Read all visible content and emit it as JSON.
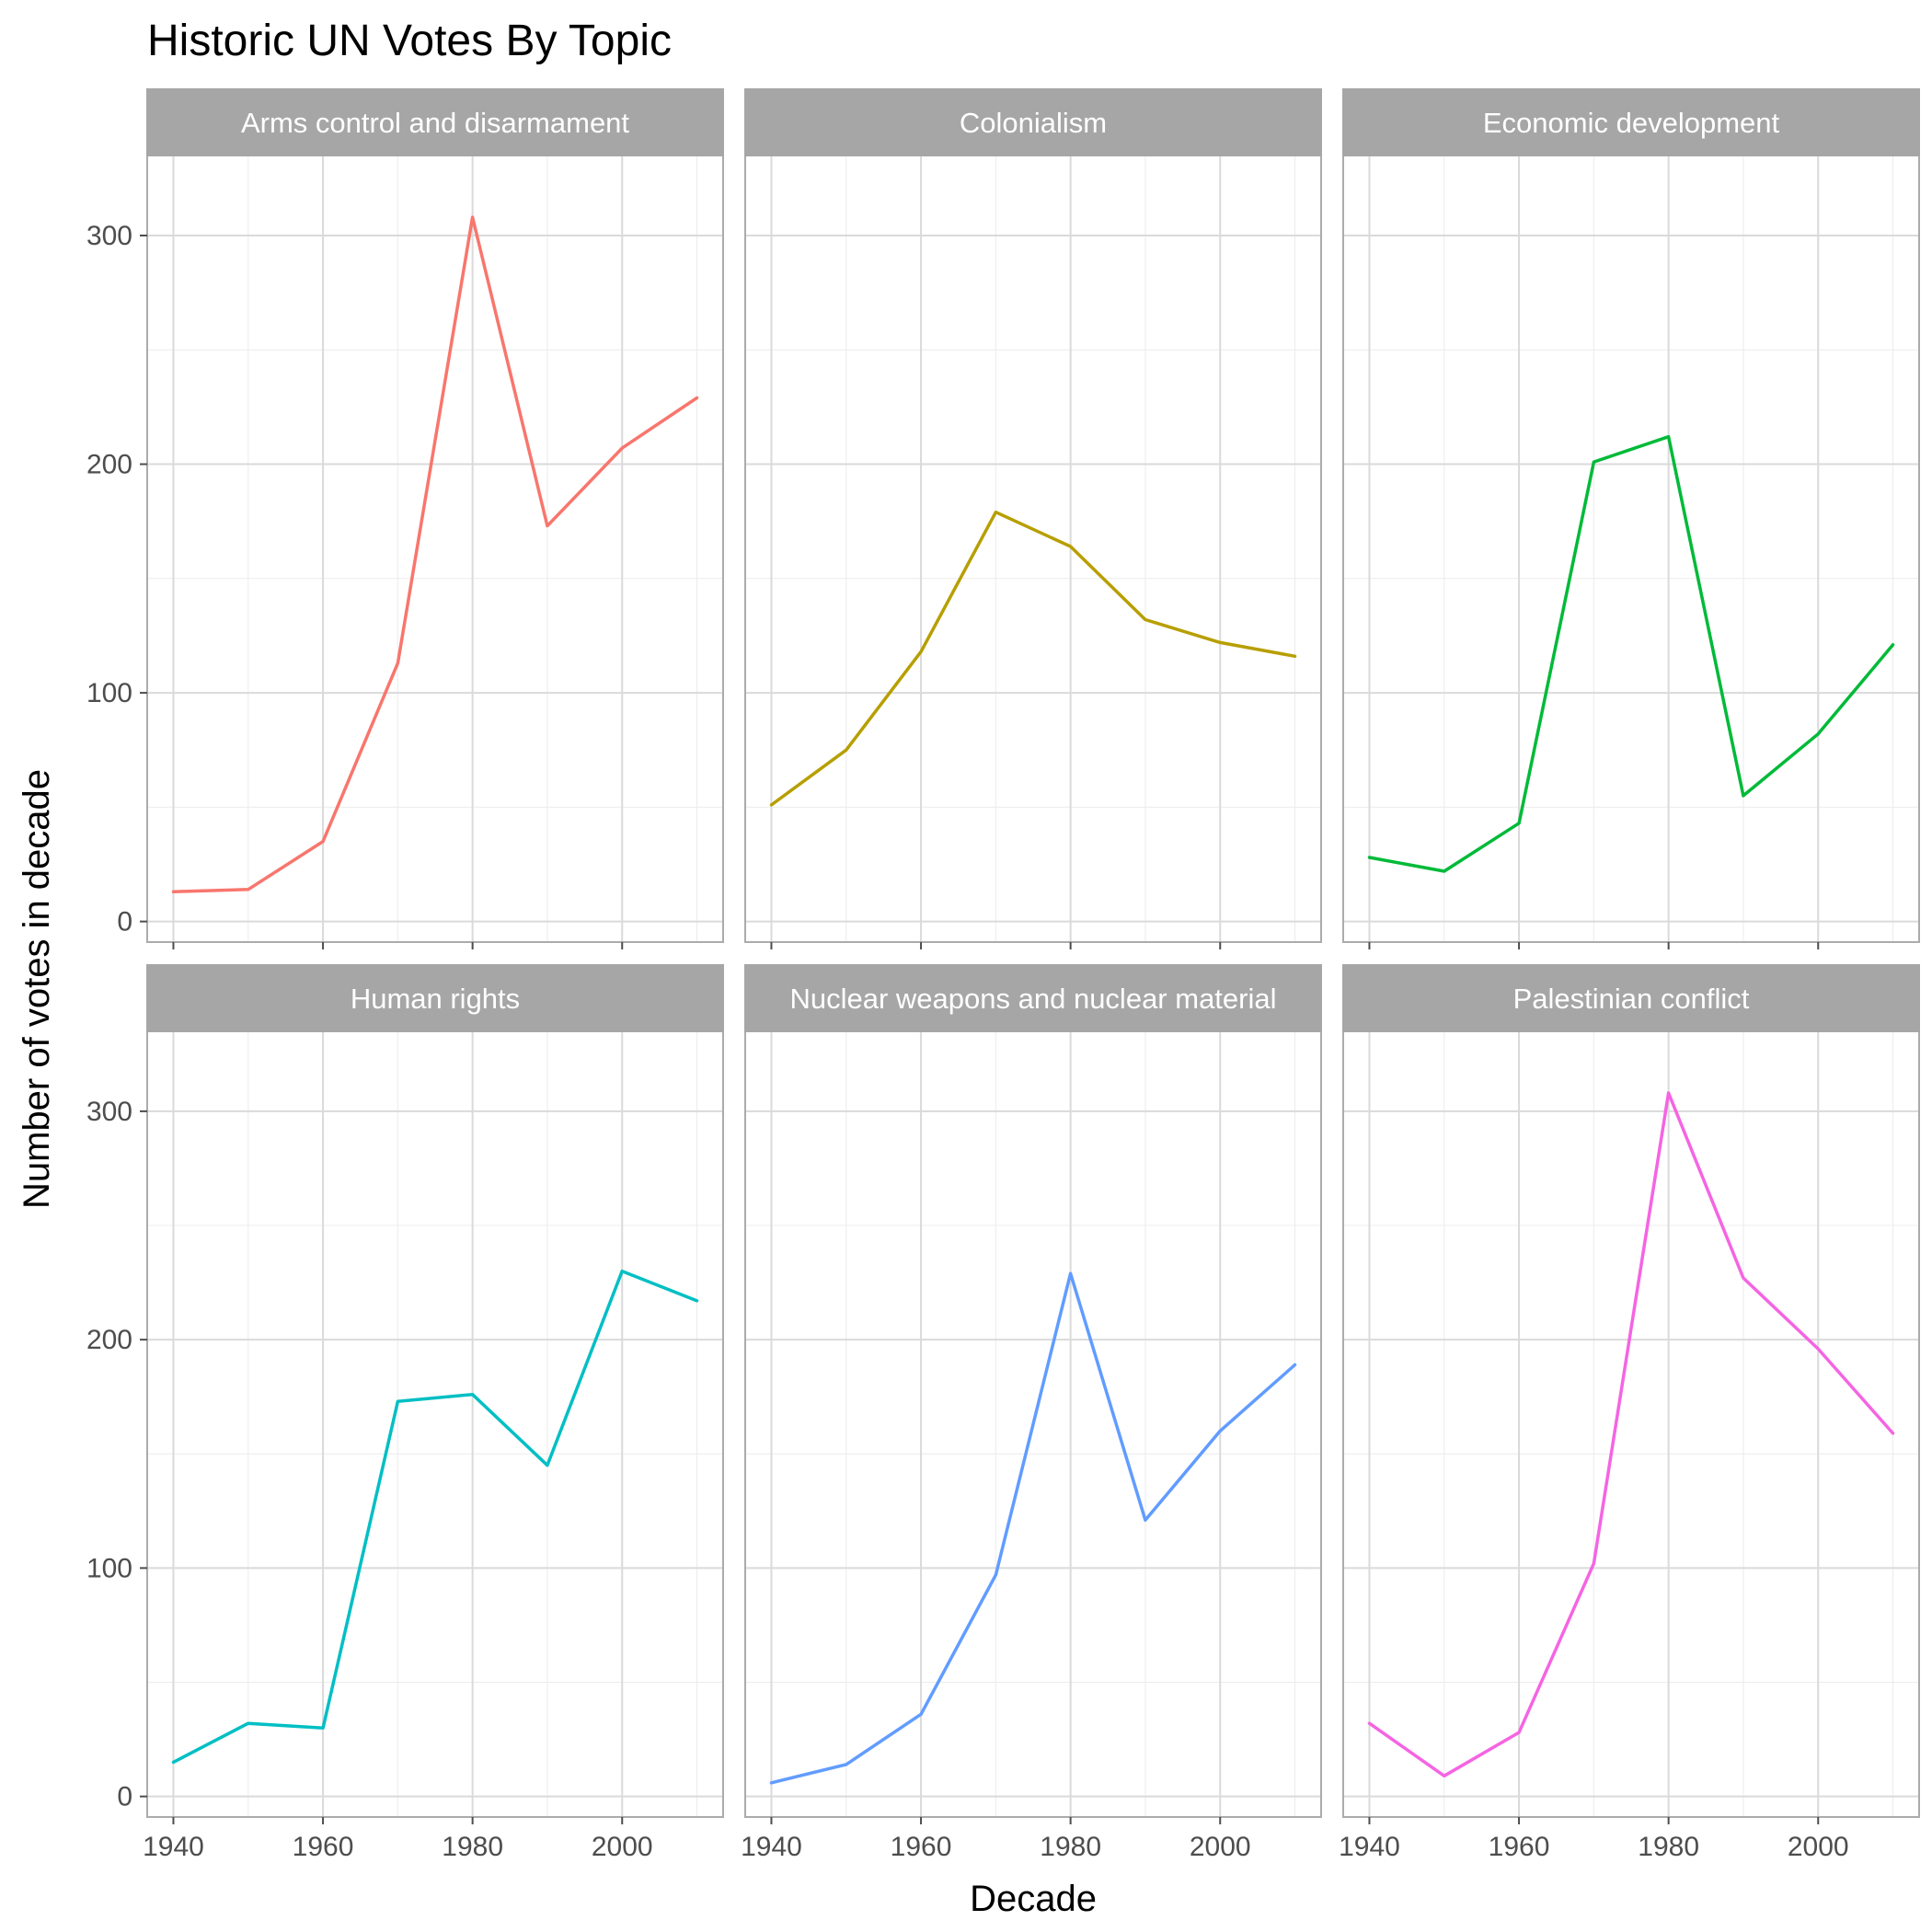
{
  "chart_data": {
    "type": "line",
    "title": "Historic UN Votes By Topic",
    "xlabel": "Decade",
    "ylabel": "Number of votes in decade",
    "x": [
      1940,
      1950,
      1960,
      1970,
      1980,
      1990,
      2000,
      2010
    ],
    "xlim": [
      1936.5,
      2013.5
    ],
    "ylim": [
      -9,
      335
    ],
    "x_ticks": [
      1940,
      1960,
      1980,
      2000
    ],
    "x_tick_labels": [
      "1940",
      "1960",
      "1980",
      "2000"
    ],
    "y_ticks": [
      0,
      100,
      200,
      300
    ],
    "y_tick_labels": [
      "0",
      "100",
      "200",
      "300"
    ],
    "grid": true,
    "legend": "none",
    "facet_layout": {
      "rows": 2,
      "cols": 3
    },
    "series": [
      {
        "name": "Arms control and disarmament",
        "color": "#F8766D",
        "values": [
          13,
          14,
          35,
          113,
          308,
          173,
          207,
          229
        ]
      },
      {
        "name": "Colonialism",
        "color": "#B79F00",
        "values": [
          51,
          75,
          118,
          179,
          164,
          132,
          122,
          116
        ]
      },
      {
        "name": "Economic development",
        "color": "#00BA38",
        "values": [
          28,
          22,
          43,
          201,
          212,
          55,
          82,
          121
        ]
      },
      {
        "name": "Human rights",
        "color": "#00BFC4",
        "values": [
          15,
          32,
          30,
          173,
          176,
          145,
          230,
          217
        ]
      },
      {
        "name": "Nuclear weapons and nuclear material",
        "color": "#619CFF",
        "values": [
          6,
          14,
          36,
          97,
          229,
          121,
          160,
          189
        ]
      },
      {
        "name": "Palestinian conflict",
        "color": "#F564E3",
        "values": [
          32,
          9,
          28,
          102,
          308,
          227,
          196,
          159
        ]
      }
    ]
  }
}
